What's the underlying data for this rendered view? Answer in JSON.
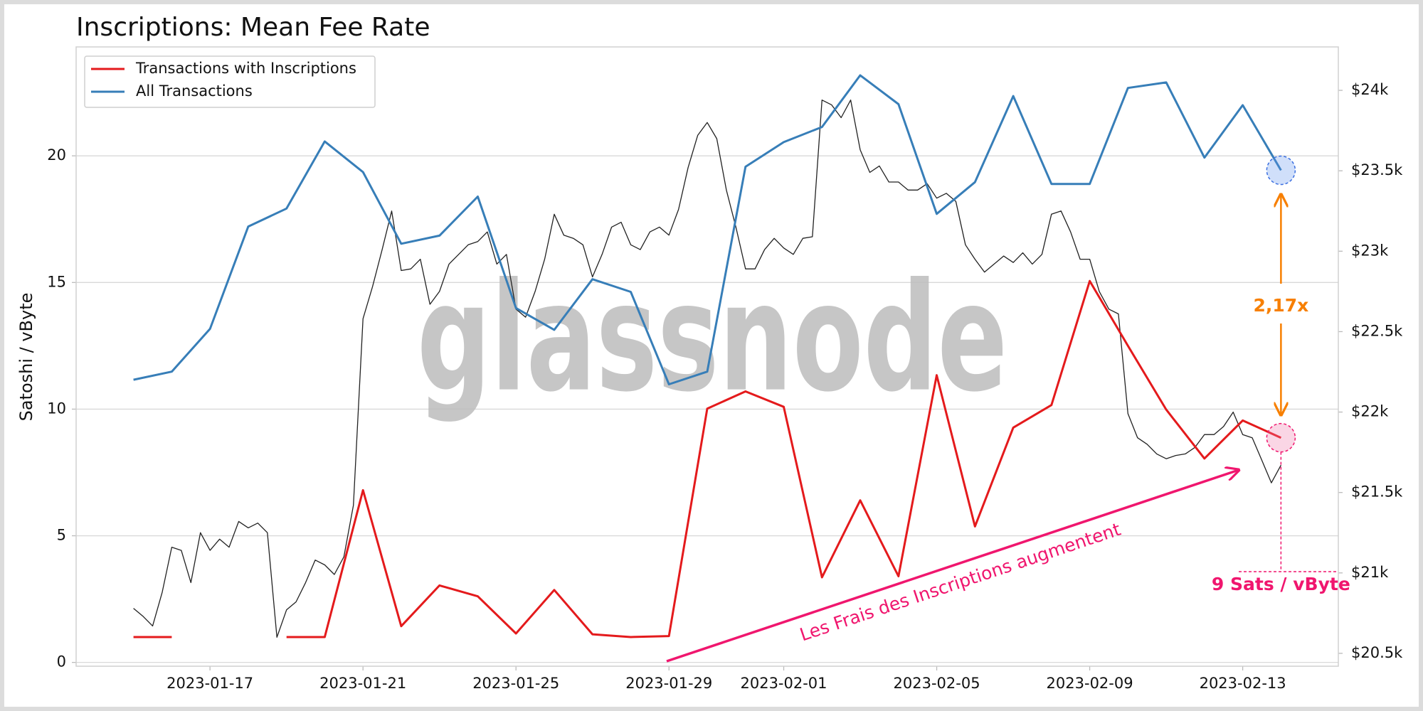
{
  "chart_data": {
    "type": "line",
    "title": "Inscriptions: Mean Fee Rate",
    "y_label": "Satoshi / vByte",
    "watermark": "glassnode",
    "legend": "upper left",
    "grid": true,
    "x": [
      "2023-01-15",
      "2023-01-16",
      "2023-01-17",
      "2023-01-18",
      "2023-01-19",
      "2023-01-20",
      "2023-01-21",
      "2023-01-22",
      "2023-01-23",
      "2023-01-24",
      "2023-01-25",
      "2023-01-26",
      "2023-01-27",
      "2023-01-28",
      "2023-01-29",
      "2023-01-30",
      "2023-01-31",
      "2023-02-01",
      "2023-02-02",
      "2023-02-03",
      "2023-02-04",
      "2023-02-05",
      "2023-02-06",
      "2023-02-07",
      "2023-02-08",
      "2023-02-09",
      "2023-02-10",
      "2023-02-11",
      "2023-02-12",
      "2023-02-13",
      "2023-02-14"
    ],
    "xlim": [
      "2023-01-13 12:00",
      "2023-02-15 12:00"
    ],
    "xticks": [
      "2023-01-17",
      "2023-01-21",
      "2023-01-25",
      "2023-01-29",
      "2023-02-01",
      "2023-02-05",
      "2023-02-09",
      "2023-02-13"
    ],
    "ylim": [
      -0.15,
      24.3
    ],
    "yticks": [
      0,
      5,
      10,
      15,
      20
    ],
    "y2lim": [
      20420,
      24270
    ],
    "y2ticks": [
      {
        "value": 20500,
        "label": "$20.5k"
      },
      {
        "value": 21000,
        "label": "$21k"
      },
      {
        "value": 21500,
        "label": "$21.5k"
      },
      {
        "value": 22000,
        "label": "$22k"
      },
      {
        "value": 22500,
        "label": "$22.5k"
      },
      {
        "value": 23000,
        "label": "$23k"
      },
      {
        "value": 23500,
        "label": "$23.5k"
      },
      {
        "value": 24000,
        "label": "$24k"
      }
    ],
    "series": [
      {
        "name": "Transactions with Inscriptions",
        "color": "#e41a1c",
        "values": [
          1.0,
          1.0,
          null,
          null,
          1.0,
          1.0,
          6.8,
          1.43,
          3.04,
          2.61,
          1.14,
          2.86,
          1.11,
          1.0,
          1.04,
          10.02,
          10.7,
          10.09,
          3.36,
          6.4,
          3.4,
          11.34,
          5.37,
          9.27,
          10.16,
          15.06,
          12.5,
          9.98,
          8.05,
          9.55,
          8.87
        ]
      },
      {
        "name": "All Transactions",
        "color": "#377eb8",
        "values": [
          11.16,
          11.48,
          13.17,
          17.21,
          17.92,
          20.57,
          19.36,
          16.53,
          16.85,
          18.39,
          13.99,
          13.13,
          15.13,
          14.63,
          10.98,
          11.48,
          19.57,
          20.54,
          21.14,
          23.18,
          22.04,
          17.71,
          18.96,
          22.36,
          18.89,
          18.89,
          22.68,
          22.9,
          19.93,
          22.0,
          19.43
        ]
      },
      {
        "color": "#222222",
        "axis": "y2",
        "x": [
          "2023-01-15 00:00",
          "2023-01-15 06:00",
          "2023-01-15 12:00",
          "2023-01-15 18:00",
          "2023-01-16 00:00",
          "2023-01-16 06:00",
          "2023-01-16 12:00",
          "2023-01-16 18:00",
          "2023-01-17 00:00",
          "2023-01-17 06:00",
          "2023-01-17 12:00",
          "2023-01-17 18:00",
          "2023-01-18 00:00",
          "2023-01-18 06:00",
          "2023-01-18 12:00",
          "2023-01-18 18:00",
          "2023-01-19 00:00",
          "2023-01-19 06:00",
          "2023-01-19 12:00",
          "2023-01-19 18:00",
          "2023-01-20 00:00",
          "2023-01-20 06:00",
          "2023-01-20 12:00",
          "2023-01-20 18:00",
          "2023-01-21 00:00",
          "2023-01-21 06:00",
          "2023-01-21 12:00",
          "2023-01-21 18:00",
          "2023-01-22 00:00",
          "2023-01-22 06:00",
          "2023-01-22 12:00",
          "2023-01-22 18:00",
          "2023-01-23 00:00",
          "2023-01-23 06:00",
          "2023-01-23 12:00",
          "2023-01-23 18:00",
          "2023-01-24 00:00",
          "2023-01-24 06:00",
          "2023-01-24 12:00",
          "2023-01-24 18:00",
          "2023-01-25 00:00",
          "2023-01-25 06:00",
          "2023-01-25 12:00",
          "2023-01-25 18:00",
          "2023-01-26 00:00",
          "2023-01-26 06:00",
          "2023-01-26 12:00",
          "2023-01-26 18:00",
          "2023-01-27 00:00",
          "2023-01-27 06:00",
          "2023-01-27 12:00",
          "2023-01-27 18:00",
          "2023-01-28 00:00",
          "2023-01-28 06:00",
          "2023-01-28 12:00",
          "2023-01-28 18:00",
          "2023-01-29 00:00",
          "2023-01-29 06:00",
          "2023-01-29 12:00",
          "2023-01-29 18:00",
          "2023-01-30 00:00",
          "2023-01-30 06:00",
          "2023-01-30 12:00",
          "2023-01-30 18:00",
          "2023-01-31 00:00",
          "2023-01-31 06:00",
          "2023-01-31 12:00",
          "2023-01-31 18:00",
          "2023-02-01 00:00",
          "2023-02-01 06:00",
          "2023-02-01 12:00",
          "2023-02-01 18:00",
          "2023-02-02 00:00",
          "2023-02-02 06:00",
          "2023-02-02 12:00",
          "2023-02-02 18:00",
          "2023-02-03 00:00",
          "2023-02-03 06:00",
          "2023-02-03 12:00",
          "2023-02-03 18:00",
          "2023-02-04 00:00",
          "2023-02-04 06:00",
          "2023-02-04 12:00",
          "2023-02-04 18:00",
          "2023-02-05 00:00",
          "2023-02-05 06:00",
          "2023-02-05 12:00",
          "2023-02-05 18:00",
          "2023-02-06 00:00",
          "2023-02-06 06:00",
          "2023-02-06 12:00",
          "2023-02-06 18:00",
          "2023-02-07 00:00",
          "2023-02-07 06:00",
          "2023-02-07 12:00",
          "2023-02-07 18:00",
          "2023-02-08 00:00",
          "2023-02-08 06:00",
          "2023-02-08 12:00",
          "2023-02-08 18:00",
          "2023-02-09 00:00",
          "2023-02-09 06:00",
          "2023-02-09 12:00",
          "2023-02-09 18:00",
          "2023-02-10 00:00",
          "2023-02-10 06:00",
          "2023-02-10 12:00",
          "2023-02-10 18:00",
          "2023-02-11 00:00",
          "2023-02-11 06:00",
          "2023-02-11 12:00",
          "2023-02-11 18:00",
          "2023-02-12 00:00",
          "2023-02-12 06:00",
          "2023-02-12 12:00",
          "2023-02-12 18:00",
          "2023-02-13 00:00",
          "2023-02-13 06:00",
          "2023-02-13 12:00",
          "2023-02-13 18:00",
          "2023-02-14 00:00"
        ],
        "values": [
          20780,
          20730,
          20670,
          20880,
          21160,
          21140,
          20940,
          21250,
          21140,
          21210,
          21160,
          21320,
          21280,
          21310,
          21250,
          20600,
          20770,
          20820,
          20940,
          21080,
          21050,
          20990,
          21100,
          21420,
          22580,
          22780,
          23010,
          23250,
          22880,
          22890,
          22950,
          22670,
          22750,
          22920,
          22980,
          23040,
          23060,
          23120,
          22920,
          22980,
          22640,
          22590,
          22750,
          22950,
          23230,
          23100,
          23080,
          23040,
          22840,
          22980,
          23150,
          23180,
          23040,
          23010,
          23120,
          23150,
          23100,
          23260,
          23520,
          23720,
          23800,
          23700,
          23380,
          23150,
          22890,
          22890,
          23010,
          23080,
          23020,
          22980,
          23080,
          23090,
          23940,
          23910,
          23830,
          23940,
          23630,
          23490,
          23530,
          23430,
          23430,
          23380,
          23380,
          23420,
          23330,
          23360,
          23310,
          23040,
          22950,
          22870,
          22920,
          22970,
          22930,
          22990,
          22920,
          22980,
          23230,
          23250,
          23120,
          22950,
          22950,
          22750,
          22640,
          22610,
          21990,
          21840,
          21800,
          21740,
          21710,
          21730,
          21740,
          21780,
          21860,
          21860,
          21910,
          22000,
          21860,
          21840,
          21700,
          21560,
          21670
        ]
      }
    ],
    "annotations": {
      "trend": "Les Frais des Inscriptions augmentent",
      "ratio": "2,17x",
      "latest": "9 Sats / vByte"
    }
  }
}
